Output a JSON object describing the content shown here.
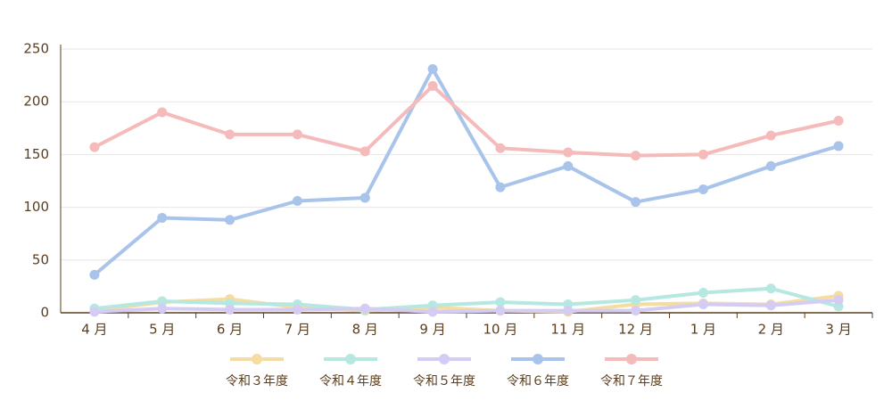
{
  "chart_data": {
    "type": "line",
    "categories": [
      "4 月",
      "5 月",
      "6 月",
      "7 月",
      "8 月",
      "9 月",
      "10 月",
      "11 月",
      "12 月",
      "1 月",
      "2 月",
      "3 月"
    ],
    "series": [
      {
        "name": "令和３年度",
        "color": "#f5dca0",
        "values": [
          2,
          10,
          13,
          5,
          2,
          5,
          2,
          1,
          8,
          9,
          8,
          16
        ]
      },
      {
        "name": "令和４年度",
        "color": "#b5e8e0",
        "values": [
          4,
          11,
          9,
          8,
          3,
          7,
          10,
          8,
          12,
          19,
          23,
          6
        ]
      },
      {
        "name": "令和５年度",
        "color": "#d5ccf5",
        "values": [
          1,
          4,
          3,
          3,
          4,
          1,
          2,
          2,
          2,
          8,
          7,
          12
        ]
      },
      {
        "name": "令和６年度",
        "color": "#a8c4ea",
        "values": [
          36,
          90,
          88,
          106,
          109,
          231,
          119,
          139,
          105,
          117,
          139,
          158
        ]
      },
      {
        "name": "令和７年度",
        "color": "#f5baba",
        "values": [
          157,
          190,
          169,
          169,
          153,
          215,
          156,
          152,
          149,
          150,
          168,
          182
        ]
      }
    ],
    "ylim": [
      0,
      250
    ],
    "yticks": [
      0,
      50,
      100,
      150,
      200,
      250
    ],
    "grid": true
  }
}
